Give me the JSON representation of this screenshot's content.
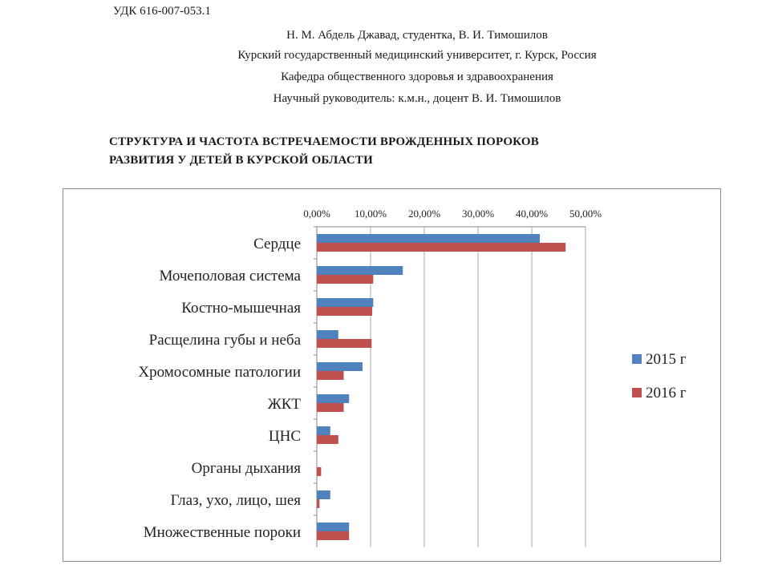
{
  "header": {
    "udk": "УДК 616-007-053.1",
    "authors": "Н. М. Абдель Джавад, студентка, В. И. Тимошилов",
    "university": "Курский государственный медицинский университет, г. Курск, Россия",
    "department": "Кафедра общественного здоровья и здравоохранения",
    "supervisor": "Научный руководитель: к.м.н., доцент В. И. Тимошилов"
  },
  "title": {
    "line1": "СТРУКТУРА И ЧАСТОТА ВСТРЕЧАЕМОСТИ ВРОЖДЕННЫХ ПОРОКОВ",
    "line2": "РАЗВИТИЯ У ДЕТЕЙ В КУРСКОЙ ОБЛАСТИ"
  },
  "chart_data": {
    "type": "bar",
    "orientation": "horizontal",
    "categories": [
      "Сердце",
      "Мочеполовая система",
      "Костно-мышечная",
      "Расщелина губы и неба",
      "Хромосомные патологии",
      "ЖКТ",
      "ЦНС",
      "Органы дыхания",
      "Глаз, ухо, лицо, шея",
      "Множественные пороки"
    ],
    "series": [
      {
        "name": "2015 г",
        "color": "#4f81bd",
        "values": [
          41.5,
          16.0,
          10.5,
          4.0,
          8.5,
          6.0,
          2.5,
          0.0,
          2.5,
          6.0
        ]
      },
      {
        "name": "2016 г",
        "color": "#c0504d",
        "values": [
          46.3,
          10.5,
          10.3,
          10.2,
          5.0,
          5.0,
          4.0,
          0.8,
          0.5,
          6.0
        ]
      }
    ],
    "xticks": [
      "0,00%",
      "10,00%",
      "20,00%",
      "30,00%",
      "40,00%",
      "50,00%"
    ],
    "xlim": [
      0,
      50
    ],
    "axis_position": "top",
    "grid": true,
    "legend_position": "right"
  }
}
